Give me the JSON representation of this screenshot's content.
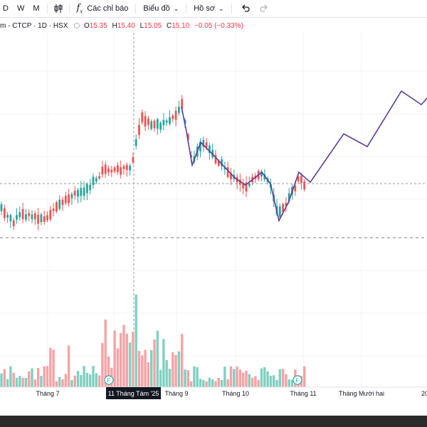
{
  "toolbar": {
    "timeframes": [
      "D",
      "W",
      "M"
    ],
    "indicators_label": "Các chỉ báo",
    "chart_type_label": "Biểu đồ",
    "profile_label": "Hồ sơ",
    "icons": [
      "candles-icon",
      "fx-icon",
      "undo-icon",
      "redo-icon"
    ]
  },
  "legend": {
    "symbol": "m - CTCP · 1D · HSX",
    "open_label": "O",
    "open": "15.35",
    "high_label": "H",
    "high": "15.40",
    "low_label": "L",
    "low": "15.05",
    "close_label": "C",
    "close": "15.10",
    "change": "−0.05 (−0.33%)"
  },
  "crosshair": {
    "date_label": "11 Tháng Tám '25"
  },
  "colors": {
    "up": "#26a69a",
    "down": "#ef5350",
    "vol_up": "#7fd1c1",
    "vol_down": "#f5a3a6",
    "projection": "#5b3d9b"
  },
  "chart_data": {
    "type": "candlestick",
    "x_tick_labels": [
      "Tháng 7",
      "Tháng 9",
      "Tháng 10",
      "Tháng 11",
      "Tháng Mười hai",
      "20"
    ],
    "event_markers": [
      "F",
      "F"
    ]
  }
}
